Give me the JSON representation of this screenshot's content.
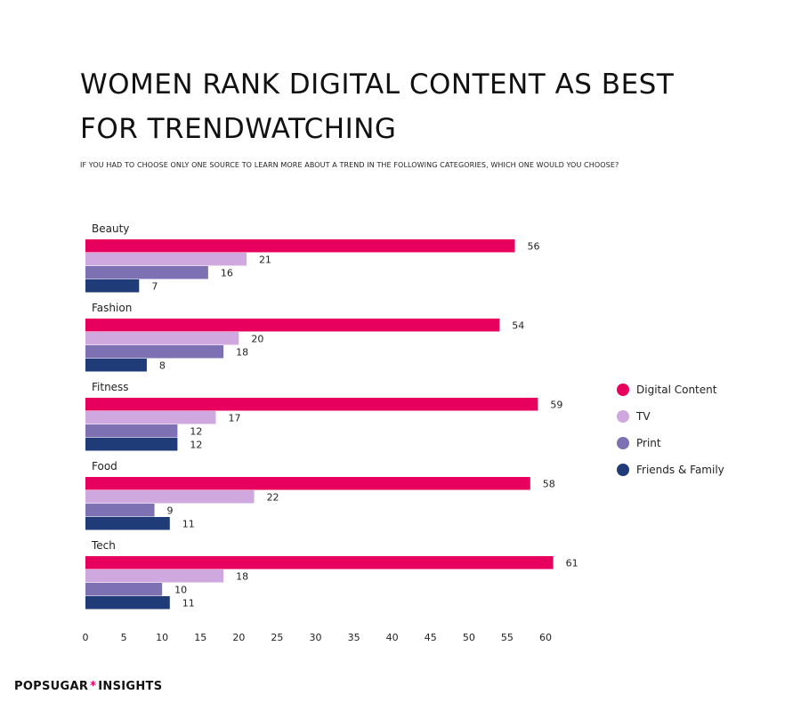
{
  "header": {
    "title": "WOMEN RANK DIGITAL CONTENT AS BEST FOR TRENDWATCHING",
    "subtitle": "IF YOU HAD TO CHOOSE ONLY ONE SOURCE TO LEARN MORE ABOUT A TREND IN THE FOLLOWING CATEGORIES, WHICH ONE WOULD YOU CHOOSE?"
  },
  "brand": {
    "left": "POPSUGAR",
    "star": "*",
    "right": "INSIGHTS",
    "star_color": "#e5006d"
  },
  "chart_data": {
    "type": "bar",
    "orientation": "horizontal",
    "title": "WOMEN RANK DIGITAL CONTENT AS BEST FOR TRENDWATCHING",
    "subtitle": "IF YOU HAD TO CHOOSE ONLY ONE SOURCE TO LEARN MORE ABOUT A TREND IN THE FOLLOWING CATEGORIES, WHICH ONE WOULD YOU CHOOSE?",
    "xlabel": "",
    "ylabel": "",
    "xlim": [
      0,
      60
    ],
    "xticks": [
      0,
      5,
      10,
      15,
      20,
      25,
      30,
      35,
      40,
      45,
      50,
      55,
      60
    ],
    "grid": false,
    "legend_position": "right",
    "categories": [
      "Beauty",
      "Fashion",
      "Fitness",
      "Food",
      "Tech"
    ],
    "series": [
      {
        "name": "Digital Content",
        "color": "#e8005f",
        "values": [
          56,
          54,
          59,
          58,
          61
        ]
      },
      {
        "name": "TV",
        "color": "#cfa8df",
        "values": [
          21,
          20,
          17,
          22,
          18
        ]
      },
      {
        "name": "Print",
        "color": "#7d70b3",
        "values": [
          16,
          18,
          12,
          9,
          10
        ]
      },
      {
        "name": "Friends & Family",
        "color": "#1f3c78",
        "values": [
          7,
          8,
          12,
          11,
          11
        ]
      }
    ]
  }
}
